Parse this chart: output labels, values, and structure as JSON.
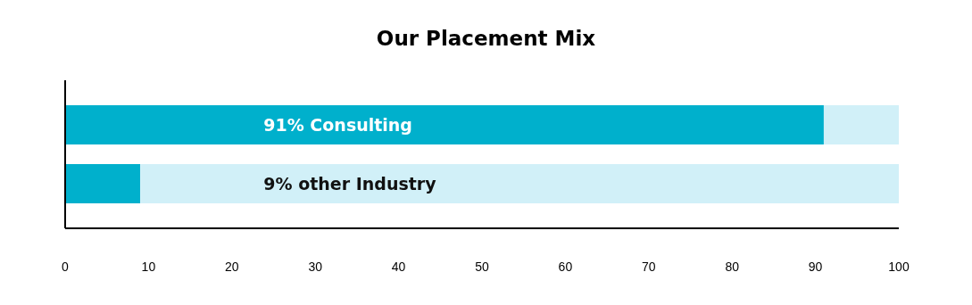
{
  "chart_data": {
    "type": "bar",
    "title": "Our Placement Mix",
    "orientation": "horizontal",
    "stacked": true,
    "categories": [
      null,
      null
    ],
    "series": [
      {
        "color": "#00b0cc",
        "values": [
          91,
          9
        ],
        "value_labels": [
          "91% Consulting",
          null
        ]
      },
      {
        "color": "#d1f0f8",
        "values": [
          9,
          91
        ]
      }
    ],
    "xlim": [
      0,
      100
    ],
    "xticks": [
      0,
      10,
      20,
      30,
      40,
      50,
      60,
      70,
      80,
      90,
      100
    ],
    "tick_labels": "x",
    "annotations": [
      "9% other Industry"
    ]
  }
}
